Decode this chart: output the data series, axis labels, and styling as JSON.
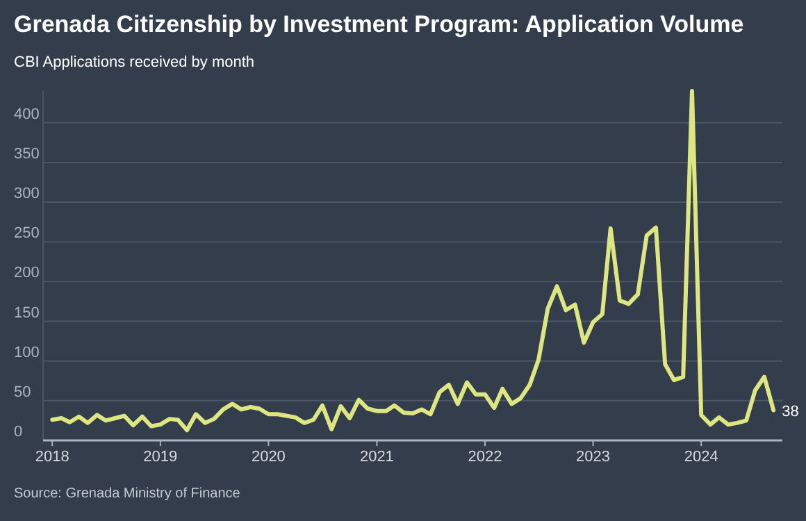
{
  "chart_data": {
    "type": "line",
    "title": "Grenada Citizenship by Investment Program: Application Volume",
    "subtitle": "CBI Applications received by month",
    "x": [
      "2018-01",
      "2018-02",
      "2018-03",
      "2018-04",
      "2018-05",
      "2018-06",
      "2018-07",
      "2018-08",
      "2018-09",
      "2018-10",
      "2018-11",
      "2018-12",
      "2019-01",
      "2019-02",
      "2019-03",
      "2019-04",
      "2019-05",
      "2019-06",
      "2019-07",
      "2019-08",
      "2019-09",
      "2019-10",
      "2019-11",
      "2019-12",
      "2020-01",
      "2020-02",
      "2020-03",
      "2020-04",
      "2020-05",
      "2020-06",
      "2020-07",
      "2020-08",
      "2020-09",
      "2020-10",
      "2020-11",
      "2020-12",
      "2021-01",
      "2021-02",
      "2021-03",
      "2021-04",
      "2021-05",
      "2021-06",
      "2021-07",
      "2021-08",
      "2021-09",
      "2021-10",
      "2021-11",
      "2021-12",
      "2022-01",
      "2022-02",
      "2022-03",
      "2022-04",
      "2022-05",
      "2022-06",
      "2022-07",
      "2022-08",
      "2022-09",
      "2022-10",
      "2022-11",
      "2022-12",
      "2023-01",
      "2023-02",
      "2023-03",
      "2023-04",
      "2023-05",
      "2023-06",
      "2023-07",
      "2023-08",
      "2023-09",
      "2023-10",
      "2023-11",
      "2023-12",
      "2024-01",
      "2024-02",
      "2024-03",
      "2024-04",
      "2024-05",
      "2024-06",
      "2024-07",
      "2024-08",
      "2024-09"
    ],
    "series": [
      {
        "color": "#dde680",
        "values": [
          26,
          28,
          23,
          30,
          22,
          32,
          25,
          28,
          31,
          19,
          30,
          18,
          20,
          27,
          26,
          13,
          33,
          22,
          27,
          39,
          46,
          39,
          42,
          40,
          33,
          33,
          31,
          29,
          22,
          26,
          44,
          14,
          43,
          28,
          51,
          40,
          37,
          37,
          44,
          35,
          34,
          39,
          33,
          61,
          70,
          46,
          73,
          58,
          58,
          41,
          65,
          46,
          53,
          70,
          102,
          166,
          194,
          164,
          171,
          123,
          149,
          159,
          267,
          176,
          172,
          184,
          258,
          268,
          96,
          76,
          80,
          440,
          32,
          20,
          29,
          20,
          22,
          25,
          63,
          80,
          38
        ]
      }
    ],
    "xlim": [
      "2017-12",
      "2024-10"
    ],
    "xticks": [
      "2018",
      "2019",
      "2020",
      "2021",
      "2022",
      "2023",
      "2024"
    ],
    "ylim": [
      0,
      440
    ],
    "yticks": [
      0,
      50,
      100,
      150,
      200,
      250,
      300,
      350,
      400
    ],
    "grid": "y",
    "marker": "none",
    "line_style": "solid",
    "annotations": [
      {
        "text": "38",
        "x": "2024-09",
        "y": 38
      },
      "Source: Grenada Ministry of Finance"
    ]
  }
}
